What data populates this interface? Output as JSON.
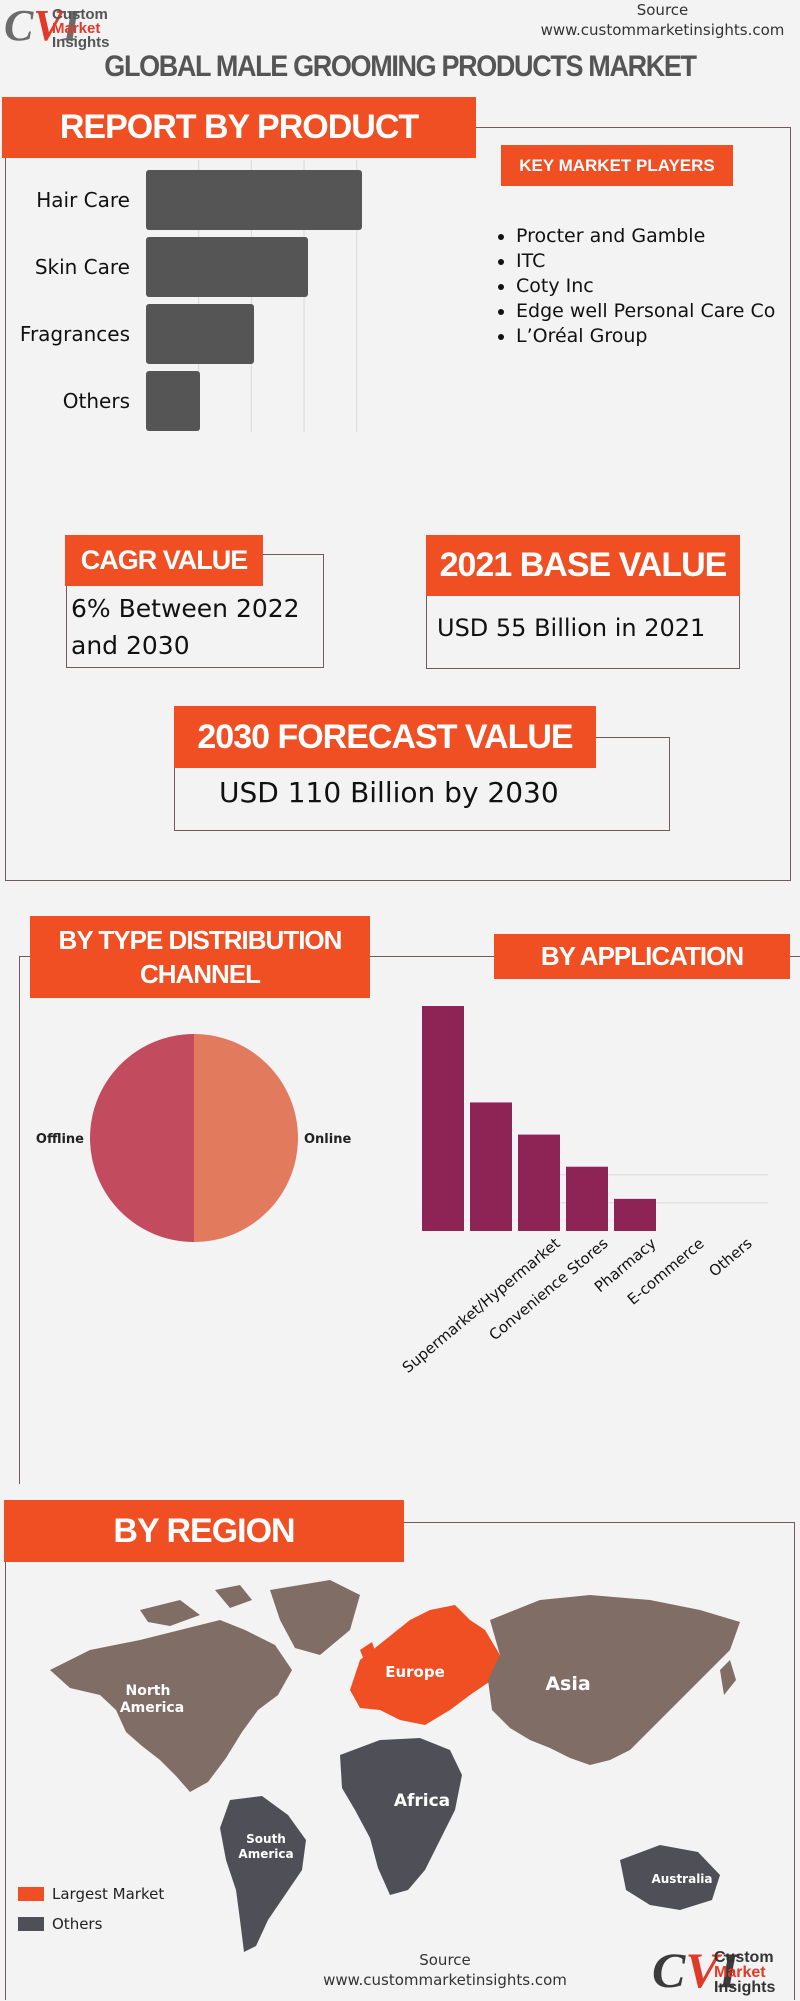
{
  "header": {
    "logo_line1": "Custom",
    "logo_line2": "Market",
    "logo_line3": "Insights",
    "source_label": "Source",
    "source_url": "www.custommarketinsights.com",
    "title": "GLOBAL MALE GROOMING PRODUCTS MARKET"
  },
  "report_by_product": {
    "heading": "REPORT BY PRODUCT"
  },
  "key_players": {
    "heading": "KEY MARKET PLAYERS",
    "items": [
      "Procter and Gamble",
      "ITC",
      "Coty Inc",
      "Edge well Personal Care Co",
      "L’Oréal Group"
    ]
  },
  "cagr": {
    "heading": "CAGR VALUE",
    "line1": "6% Between 2022",
    "line2": "and 2030"
  },
  "base_value": {
    "heading": "2021 BASE VALUE",
    "value": "USD 55  Billion in 2021"
  },
  "forecast": {
    "heading": "2030 FORECAST  VALUE",
    "value": "USD 110  Billion by 2030"
  },
  "distribution": {
    "heading_line1": "BY TYPE DISTRIBUTION",
    "heading_line2": "CHANNEL"
  },
  "application": {
    "heading": "BY APPLICATION"
  },
  "region": {
    "heading": "BY REGION",
    "labels": {
      "north_america_1": "North",
      "north_america_2": "America",
      "south_america_1": "South",
      "south_america_2": "America",
      "europe": "Europe",
      "asia": "Asia",
      "africa": "Africa",
      "australia": "Australia"
    },
    "legend": [
      {
        "label": "Largest Market",
        "color": "#f04e23"
      },
      {
        "label": "Others",
        "color": "#4f4f57"
      }
    ]
  },
  "footer": {
    "source_label": "Source",
    "source_url": "www.custommarketinsights.com",
    "logo_line1": "Custom",
    "logo_line2": "Market",
    "logo_line3": "Insights"
  },
  "chart_data": [
    {
      "type": "bar",
      "orientation": "horizontal",
      "categories": [
        "Hair Care",
        "Skin Care",
        "Fragrances",
        "Others"
      ],
      "values": [
        4,
        3,
        2,
        1
      ],
      "color": "#555555",
      "grid": true
    },
    {
      "type": "pie",
      "labels": [
        "Online",
        "Offline"
      ],
      "values": [
        50,
        50
      ],
      "colors": [
        "#e27a5e",
        "#c24b5e"
      ]
    },
    {
      "type": "bar",
      "categories": [
        "Supermarket/Hypermarket",
        "Convenience Stores",
        "Pharmacy",
        "E-commerce",
        "Others"
      ],
      "values": [
        7,
        4,
        3,
        2,
        1
      ],
      "color": "#8e2456",
      "grid": true
    }
  ]
}
